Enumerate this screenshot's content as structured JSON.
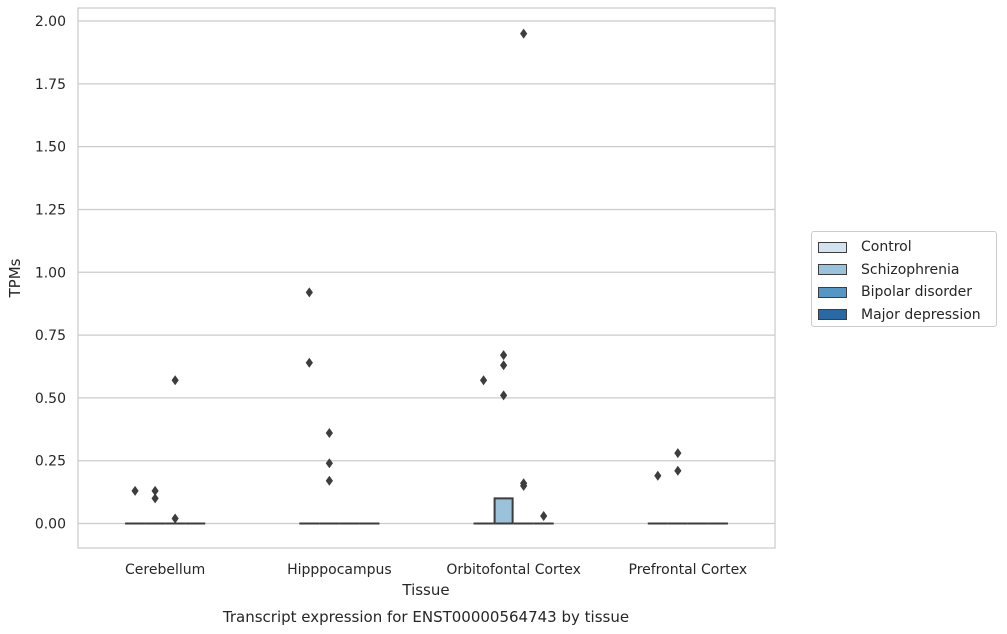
{
  "chart_data": {
    "type": "boxplot",
    "title": "",
    "caption": "Transcript expression for ENST00000564743 by tissue",
    "xlabel": "Tissue",
    "ylabel": "TPMs",
    "ylim": [
      -0.1,
      2.05
    ],
    "yticks": [
      "0.00",
      "0.25",
      "0.50",
      "0.75",
      "1.00",
      "1.25",
      "1.50",
      "1.75",
      "2.00"
    ],
    "ytick_values": [
      0,
      0.25,
      0.5,
      0.75,
      1.0,
      1.25,
      1.5,
      1.75,
      2.0
    ],
    "grid": "horizontal",
    "legend_position": "right",
    "categories": [
      "Cerebellum",
      "Hipppocampus",
      "Orbitofontal Cortex",
      "Prefrontal Cortex"
    ],
    "series": [
      {
        "name": "Control",
        "color": "#d3e2f0",
        "boxes": [
          {
            "q1": 0,
            "median": 0,
            "q3": 0,
            "outliers": [
              0.13
            ]
          },
          {
            "q1": 0,
            "median": 0,
            "q3": 0,
            "outliers": [
              0.92,
              0.64
            ]
          },
          {
            "q1": 0,
            "median": 0,
            "q3": 0,
            "outliers": [
              0.57
            ]
          },
          {
            "q1": 0,
            "median": 0,
            "q3": 0,
            "outliers": [
              0.19
            ]
          }
        ]
      },
      {
        "name": "Schizophrenia",
        "color": "#9ac2db",
        "boxes": [
          {
            "q1": 0,
            "median": 0,
            "q3": 0,
            "outliers": [
              0.13,
              0.1
            ]
          },
          {
            "q1": 0,
            "median": 0,
            "q3": 0,
            "outliers": [
              0.36,
              0.24,
              0.17
            ]
          },
          {
            "q1": 0,
            "median": 0,
            "q3": 0.1,
            "outliers": [
              0.67,
              0.63,
              0.51
            ]
          },
          {
            "q1": 0,
            "median": 0,
            "q3": 0,
            "outliers": [
              0.28,
              0.21
            ]
          }
        ]
      },
      {
        "name": "Bipolar disorder",
        "color": "#5596c5",
        "boxes": [
          {
            "q1": 0,
            "median": 0,
            "q3": 0,
            "outliers": [
              0.57,
              0.02
            ]
          },
          {
            "q1": 0,
            "median": 0,
            "q3": 0,
            "outliers": []
          },
          {
            "q1": 0,
            "median": 0,
            "q3": 0,
            "outliers": [
              1.95,
              0.16,
              0.15
            ]
          },
          {
            "q1": 0,
            "median": 0,
            "q3": 0,
            "outliers": []
          }
        ]
      },
      {
        "name": "Major depression",
        "color": "#2b69a4",
        "boxes": [
          {
            "q1": 0,
            "median": 0,
            "q3": 0,
            "outliers": []
          },
          {
            "q1": 0,
            "median": 0,
            "q3": 0,
            "outliers": []
          },
          {
            "q1": 0,
            "median": 0,
            "q3": 0,
            "outliers": [
              0.03
            ]
          },
          {
            "q1": 0,
            "median": 0,
            "q3": 0,
            "outliers": []
          }
        ]
      }
    ]
  }
}
